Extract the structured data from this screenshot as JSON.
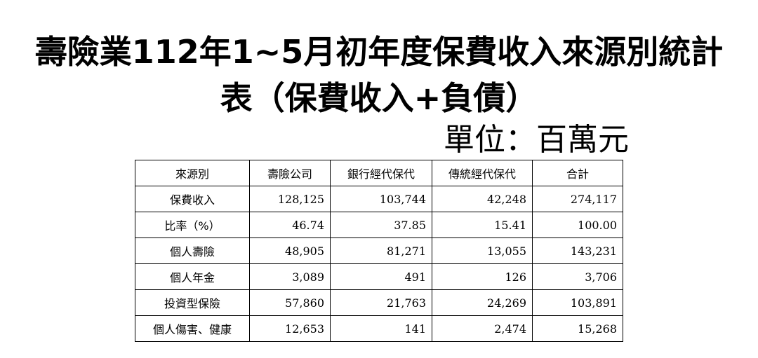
{
  "title_line1": "壽險業112年1~5月初年度保費收入來源別統計",
  "title_line2": "表（保費收入+負債）",
  "unit": "單位：百萬元",
  "table": {
    "headers": [
      "來源別",
      "壽險公司",
      "銀行經代保代",
      "傳統經代保代",
      "合計"
    ],
    "rows": [
      [
        "保費收入",
        "128,125",
        "103,744",
        "42,248",
        "274,117"
      ],
      [
        "比率（%）",
        "46.74",
        "37.85",
        "15.41",
        "100.00"
      ],
      [
        "個人壽險",
        "48,905",
        "81,271",
        "13,055",
        "143,231"
      ],
      [
        "個人年金",
        "3,089",
        "491",
        "126",
        "3,706"
      ],
      [
        "投資型保險",
        "57,860",
        "21,763",
        "24,269",
        "103,891"
      ],
      [
        "個人傷害、健康",
        "12,653",
        "141",
        "2,474",
        "15,268"
      ]
    ]
  }
}
